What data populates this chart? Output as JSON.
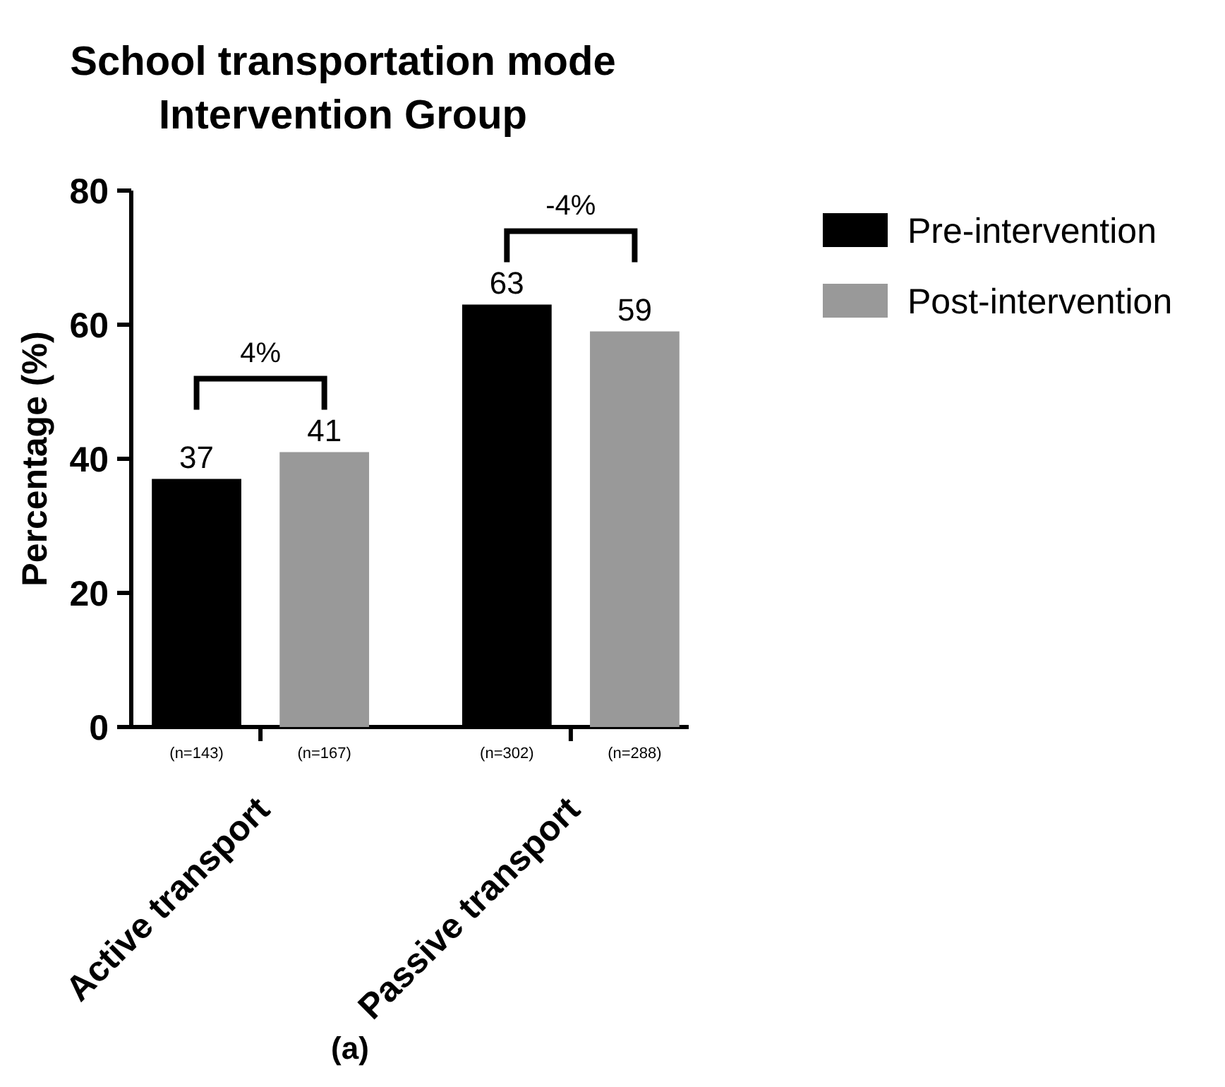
{
  "chart_data": {
    "type": "bar",
    "title": "School transportation mode",
    "subtitle": "Intervention Group",
    "ylabel": "Percentage (%)",
    "categories": [
      "Active transport",
      "Passive transport"
    ],
    "series": [
      {
        "name": "Pre-intervention",
        "color": "#000000",
        "values": [
          37,
          63
        ]
      },
      {
        "name": "Post-intervention",
        "color": "#999999",
        "values": [
          41,
          59
        ]
      }
    ],
    "ylim": [
      0,
      80
    ],
    "yticks": [
      0,
      20,
      40,
      60,
      80
    ],
    "data_labels": true,
    "grid": false,
    "legend": "right",
    "annotations": [
      "4%",
      "-4%",
      "(n=143)",
      "(n=167)",
      "(n=302)",
      "(n=288)",
      "(a)"
    ]
  }
}
